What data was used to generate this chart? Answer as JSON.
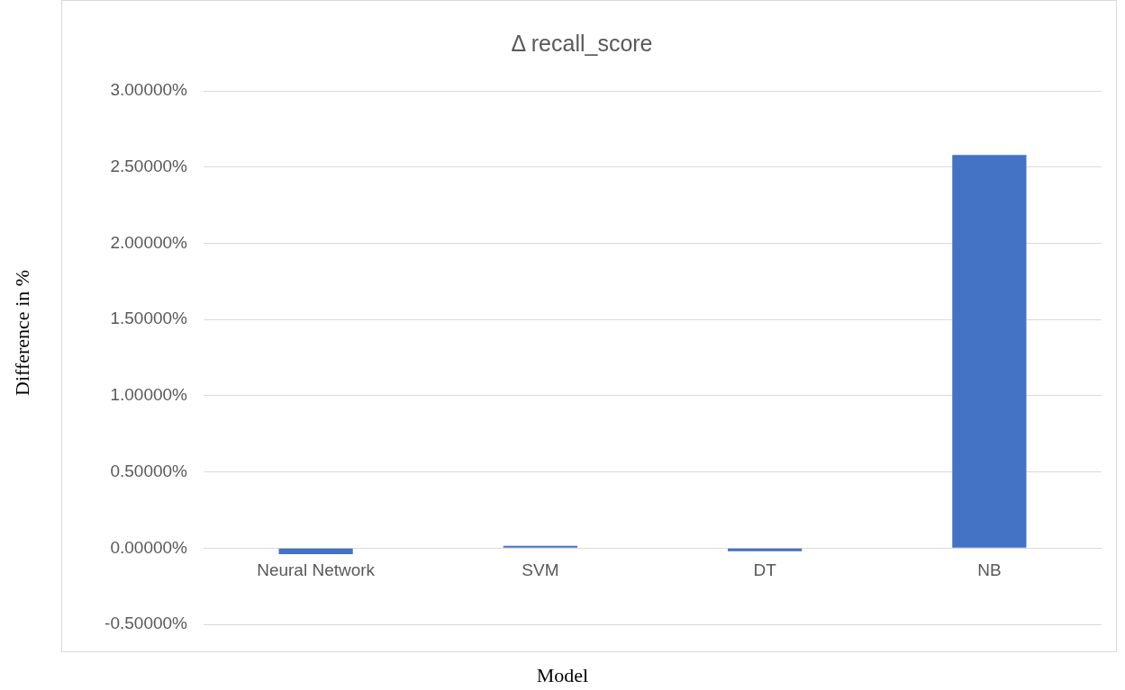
{
  "chart_data": {
    "type": "bar",
    "title": "Δ recall_score",
    "xlabel": "Model",
    "ylabel": "Difference in %",
    "categories": [
      "Neural Network",
      "SVM",
      "DT",
      "NB"
    ],
    "values": [
      -0.04,
      0.015,
      -0.02,
      2.58
    ],
    "color": "#4472c4",
    "ylim": [
      -0.5,
      3
    ],
    "yticks": [
      {
        "value": -0.5,
        "label": "-0.50000%"
      },
      {
        "value": 0,
        "label": "0.00000%"
      },
      {
        "value": 0.5,
        "label": "0.50000%"
      },
      {
        "value": 1,
        "label": "1.00000%"
      },
      {
        "value": 1.5,
        "label": "1.50000%"
      },
      {
        "value": 2,
        "label": "2.00000%"
      },
      {
        "value": 2.5,
        "label": "2.50000%"
      },
      {
        "value": 3,
        "label": "3.00000%"
      }
    ],
    "grid": "y",
    "legend": false
  }
}
